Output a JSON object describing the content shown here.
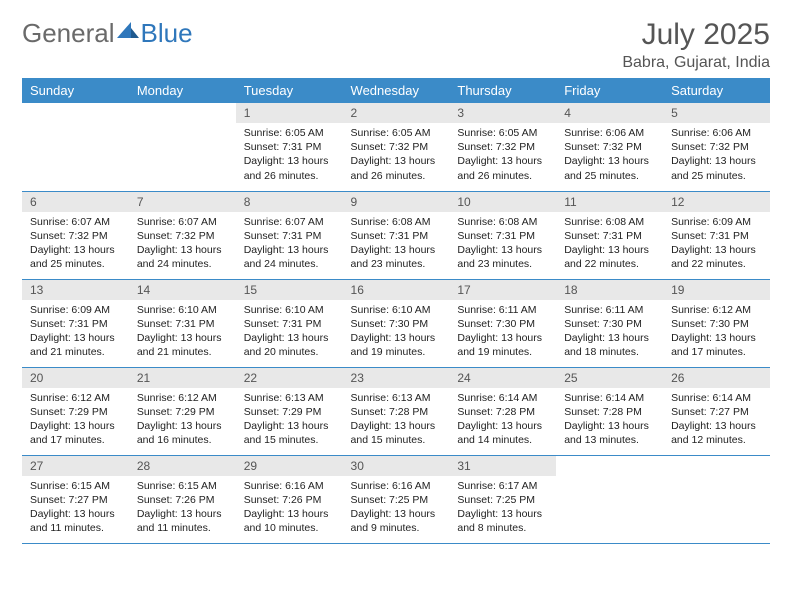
{
  "logo": {
    "general": "General",
    "blue": "Blue"
  },
  "header": {
    "month": "July 2025",
    "location": "Babra, Gujarat, India"
  },
  "colors": {
    "header_bg": "#3b8bc8",
    "header_text": "#ffffff",
    "daynum_bg": "#e8e8e8",
    "daynum_text": "#555555",
    "rule": "#3b8bc8",
    "logo_gray": "#6a6a6a",
    "logo_blue": "#2f77bb",
    "body_text": "#222222",
    "title_text": "#555555",
    "page_bg": "#ffffff"
  },
  "columns": [
    "Sunday",
    "Monday",
    "Tuesday",
    "Wednesday",
    "Thursday",
    "Friday",
    "Saturday"
  ],
  "weeks": [
    [
      null,
      null,
      {
        "n": "1",
        "sr": "6:05 AM",
        "ss": "7:31 PM",
        "dl": "13 hours and 26 minutes."
      },
      {
        "n": "2",
        "sr": "6:05 AM",
        "ss": "7:32 PM",
        "dl": "13 hours and 26 minutes."
      },
      {
        "n": "3",
        "sr": "6:05 AM",
        "ss": "7:32 PM",
        "dl": "13 hours and 26 minutes."
      },
      {
        "n": "4",
        "sr": "6:06 AM",
        "ss": "7:32 PM",
        "dl": "13 hours and 25 minutes."
      },
      {
        "n": "5",
        "sr": "6:06 AM",
        "ss": "7:32 PM",
        "dl": "13 hours and 25 minutes."
      }
    ],
    [
      {
        "n": "6",
        "sr": "6:07 AM",
        "ss": "7:32 PM",
        "dl": "13 hours and 25 minutes."
      },
      {
        "n": "7",
        "sr": "6:07 AM",
        "ss": "7:32 PM",
        "dl": "13 hours and 24 minutes."
      },
      {
        "n": "8",
        "sr": "6:07 AM",
        "ss": "7:31 PM",
        "dl": "13 hours and 24 minutes."
      },
      {
        "n": "9",
        "sr": "6:08 AM",
        "ss": "7:31 PM",
        "dl": "13 hours and 23 minutes."
      },
      {
        "n": "10",
        "sr": "6:08 AM",
        "ss": "7:31 PM",
        "dl": "13 hours and 23 minutes."
      },
      {
        "n": "11",
        "sr": "6:08 AM",
        "ss": "7:31 PM",
        "dl": "13 hours and 22 minutes."
      },
      {
        "n": "12",
        "sr": "6:09 AM",
        "ss": "7:31 PM",
        "dl": "13 hours and 22 minutes."
      }
    ],
    [
      {
        "n": "13",
        "sr": "6:09 AM",
        "ss": "7:31 PM",
        "dl": "13 hours and 21 minutes."
      },
      {
        "n": "14",
        "sr": "6:10 AM",
        "ss": "7:31 PM",
        "dl": "13 hours and 21 minutes."
      },
      {
        "n": "15",
        "sr": "6:10 AM",
        "ss": "7:31 PM",
        "dl": "13 hours and 20 minutes."
      },
      {
        "n": "16",
        "sr": "6:10 AM",
        "ss": "7:30 PM",
        "dl": "13 hours and 19 minutes."
      },
      {
        "n": "17",
        "sr": "6:11 AM",
        "ss": "7:30 PM",
        "dl": "13 hours and 19 minutes."
      },
      {
        "n": "18",
        "sr": "6:11 AM",
        "ss": "7:30 PM",
        "dl": "13 hours and 18 minutes."
      },
      {
        "n": "19",
        "sr": "6:12 AM",
        "ss": "7:30 PM",
        "dl": "13 hours and 17 minutes."
      }
    ],
    [
      {
        "n": "20",
        "sr": "6:12 AM",
        "ss": "7:29 PM",
        "dl": "13 hours and 17 minutes."
      },
      {
        "n": "21",
        "sr": "6:12 AM",
        "ss": "7:29 PM",
        "dl": "13 hours and 16 minutes."
      },
      {
        "n": "22",
        "sr": "6:13 AM",
        "ss": "7:29 PM",
        "dl": "13 hours and 15 minutes."
      },
      {
        "n": "23",
        "sr": "6:13 AM",
        "ss": "7:28 PM",
        "dl": "13 hours and 15 minutes."
      },
      {
        "n": "24",
        "sr": "6:14 AM",
        "ss": "7:28 PM",
        "dl": "13 hours and 14 minutes."
      },
      {
        "n": "25",
        "sr": "6:14 AM",
        "ss": "7:28 PM",
        "dl": "13 hours and 13 minutes."
      },
      {
        "n": "26",
        "sr": "6:14 AM",
        "ss": "7:27 PM",
        "dl": "13 hours and 12 minutes."
      }
    ],
    [
      {
        "n": "27",
        "sr": "6:15 AM",
        "ss": "7:27 PM",
        "dl": "13 hours and 11 minutes."
      },
      {
        "n": "28",
        "sr": "6:15 AM",
        "ss": "7:26 PM",
        "dl": "13 hours and 11 minutes."
      },
      {
        "n": "29",
        "sr": "6:16 AM",
        "ss": "7:26 PM",
        "dl": "13 hours and 10 minutes."
      },
      {
        "n": "30",
        "sr": "6:16 AM",
        "ss": "7:25 PM",
        "dl": "13 hours and 9 minutes."
      },
      {
        "n": "31",
        "sr": "6:17 AM",
        "ss": "7:25 PM",
        "dl": "13 hours and 8 minutes."
      },
      null,
      null
    ]
  ],
  "labels": {
    "sunrise": "Sunrise: ",
    "sunset": "Sunset: ",
    "daylight": "Daylight: "
  }
}
